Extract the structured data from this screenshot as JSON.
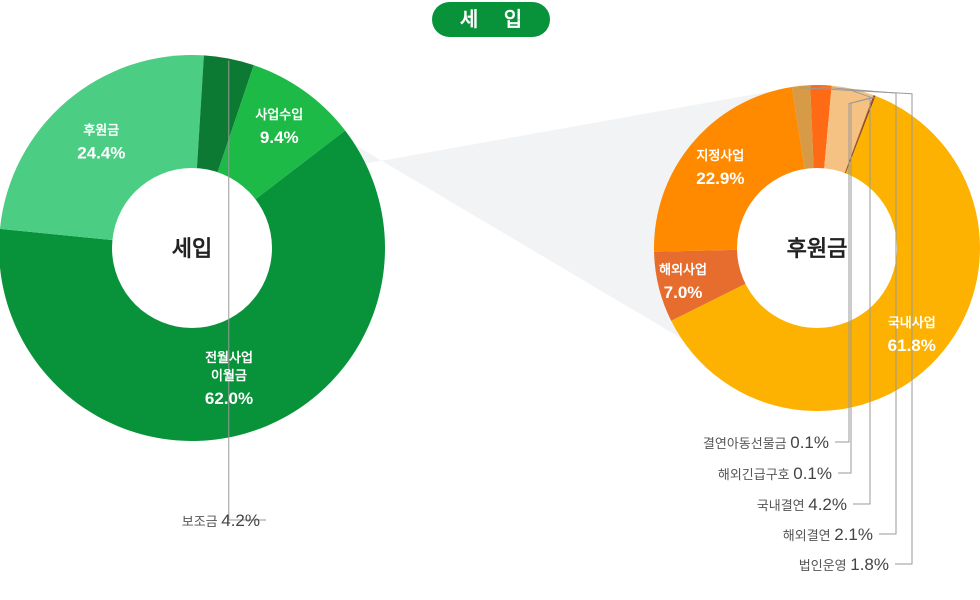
{
  "header": {
    "title": "세 입"
  },
  "chart_data": [
    {
      "type": "pie",
      "center_label": "세입",
      "slices": [
        {
          "label": "전월사업\n이월금",
          "value": 62.0,
          "value_label": "62.0%",
          "color": "#08923a"
        },
        {
          "label": "후원금",
          "value": 24.4,
          "value_label": "24.4%",
          "color": "#4ccd84"
        },
        {
          "label": "보조금",
          "value": 4.2,
          "value_label": "4.2%",
          "color": "#0c7a33"
        },
        {
          "label": "사업수입",
          "value": 9.4,
          "value_label": "9.4%",
          "color": "#1dba48"
        }
      ]
    },
    {
      "type": "pie",
      "center_label": "후원금",
      "slices": [
        {
          "label": "국내사업",
          "value": 61.8,
          "value_label": "61.8%",
          "color": "#fdb100"
        },
        {
          "label": "해외사업",
          "value": 7.0,
          "value_label": "7.0%",
          "color": "#e66d2e"
        },
        {
          "label": "지정사업",
          "value": 22.9,
          "value_label": "22.9%",
          "color": "#ff8a00"
        },
        {
          "label": "법인운영",
          "value": 1.8,
          "value_label": "1.8%",
          "color": "#d79a46"
        },
        {
          "label": "해외결연",
          "value": 2.1,
          "value_label": "2.1%",
          "color": "#ff6a14"
        },
        {
          "label": "국내결연",
          "value": 4.2,
          "value_label": "4.2%",
          "color": "#f6c283"
        },
        {
          "label": "해외긴급구호",
          "value": 0.1,
          "value_label": "0.1%",
          "color": "#a14a15"
        },
        {
          "label": "결연아동선물금",
          "value": 0.1,
          "value_label": "0.1%",
          "color": "#7a3a12"
        }
      ]
    }
  ]
}
